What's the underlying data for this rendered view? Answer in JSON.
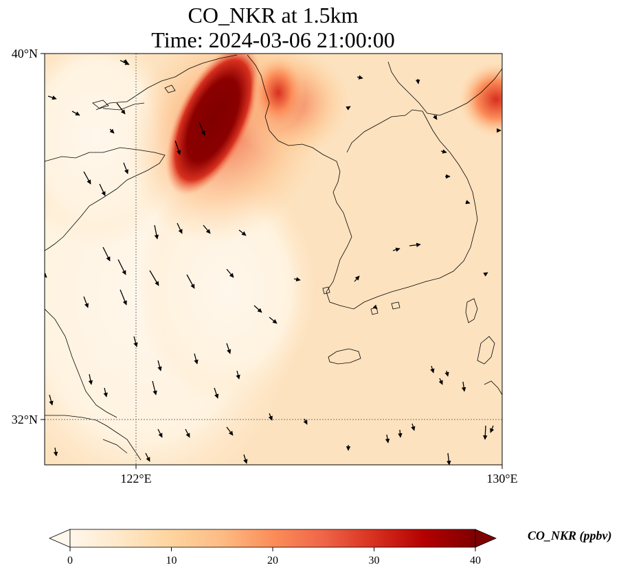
{
  "title": {
    "line1": "CO_NKR at 1.5km",
    "line2": "Time: 2024-03-06 21:00:00"
  },
  "map": {
    "extent": {
      "lon_min": 120,
      "lon_max": 130,
      "lat_min": 31,
      "lat_max": 40
    },
    "lat_ticks": [
      {
        "value": 40,
        "label": "40°N"
      },
      {
        "value": 32,
        "label": "32°N"
      }
    ],
    "lon_ticks": [
      {
        "value": 122,
        "label": "122°E"
      },
      {
        "value": 130,
        "label": "130°E"
      }
    ],
    "gridlines": [
      {
        "axis": "lon",
        "value": 122
      },
      {
        "axis": "lat",
        "value": 32
      }
    ],
    "field": "CO_NKR",
    "plume_high_concentration_region": "Bohai Bay / Liaodong area, north-west of map",
    "features": [
      "coastlines",
      "wind vectors"
    ]
  },
  "colorbar": {
    "label": "CO_NKR (ppbv)",
    "min": 0,
    "max": 40,
    "ticks": [
      0,
      10,
      20,
      30,
      40
    ],
    "colormap": "OrRd",
    "colors": [
      "#fff7ec",
      "#fee8c8",
      "#fdd49e",
      "#fdbb84",
      "#fc8d59",
      "#ef6548",
      "#d7301f",
      "#b30000",
      "#7f0000"
    ],
    "extend": "both"
  }
}
